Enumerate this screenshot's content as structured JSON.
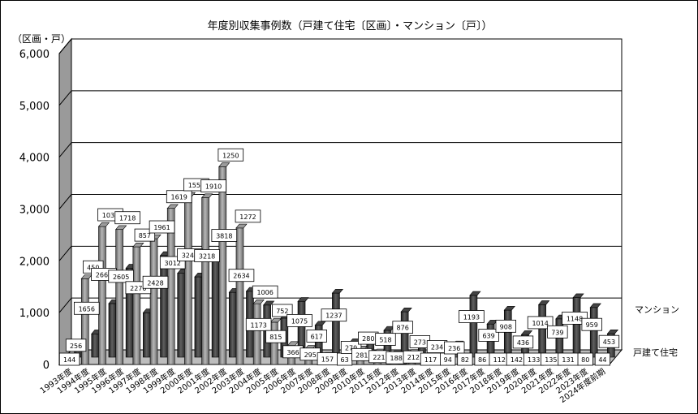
{
  "chart_data": {
    "type": "bar",
    "title": "年度別収集事例数（戸建て住宅〔区画〕・マンション〔戸〕）",
    "ylabel": "（区画・戸）",
    "ylim": [
      0,
      6000
    ],
    "yticks": [
      "0",
      "1,000",
      "2,000",
      "3,000",
      "4,000",
      "5,000",
      "6,000"
    ],
    "grid": true,
    "categories": [
      "1993年度",
      "1994年度",
      "1995年度",
      "1996年度",
      "1997年度",
      "1998年度",
      "1999年度",
      "2000年度",
      "2001年度",
      "2002年度",
      "2003年度",
      "2004年度",
      "2005年度",
      "2006年度",
      "2007年度",
      "2008年度",
      "2009年度",
      "2010年度",
      "2011年度",
      "2012年度",
      "2013年度",
      "2014年度",
      "2015年度",
      "2016年度",
      "2017年度",
      "2018年度",
      "2019年度",
      "2020年度",
      "2021年度",
      "2022年度",
      "2023年度",
      "2024年度前期"
    ],
    "series": [
      {
        "name": "戸建て住宅",
        "values": [
          144,
          1656,
          2663,
          2605,
          2270,
          2428,
          3012,
          3243,
          3218,
          3818,
          2634,
          1173,
          815,
          366,
          295,
          157,
          63,
          281,
          221,
          188,
          212,
          117,
          94,
          82,
          86,
          112,
          142,
          133,
          135,
          131,
          80,
          44
        ]
      },
      {
        "name": "マンション",
        "values": [
          256,
          450,
          1035,
          1718,
          857,
          1961,
          1619,
          1550,
          1910,
          1250,
          1272,
          1006,
          752,
          1075,
          617,
          1237,
          279,
          280,
          518,
          876,
          273,
          234,
          236,
          1193,
          639,
          908,
          436,
          1014,
          739,
          1148,
          959,
          453
        ]
      }
    ],
    "legend": "right"
  }
}
